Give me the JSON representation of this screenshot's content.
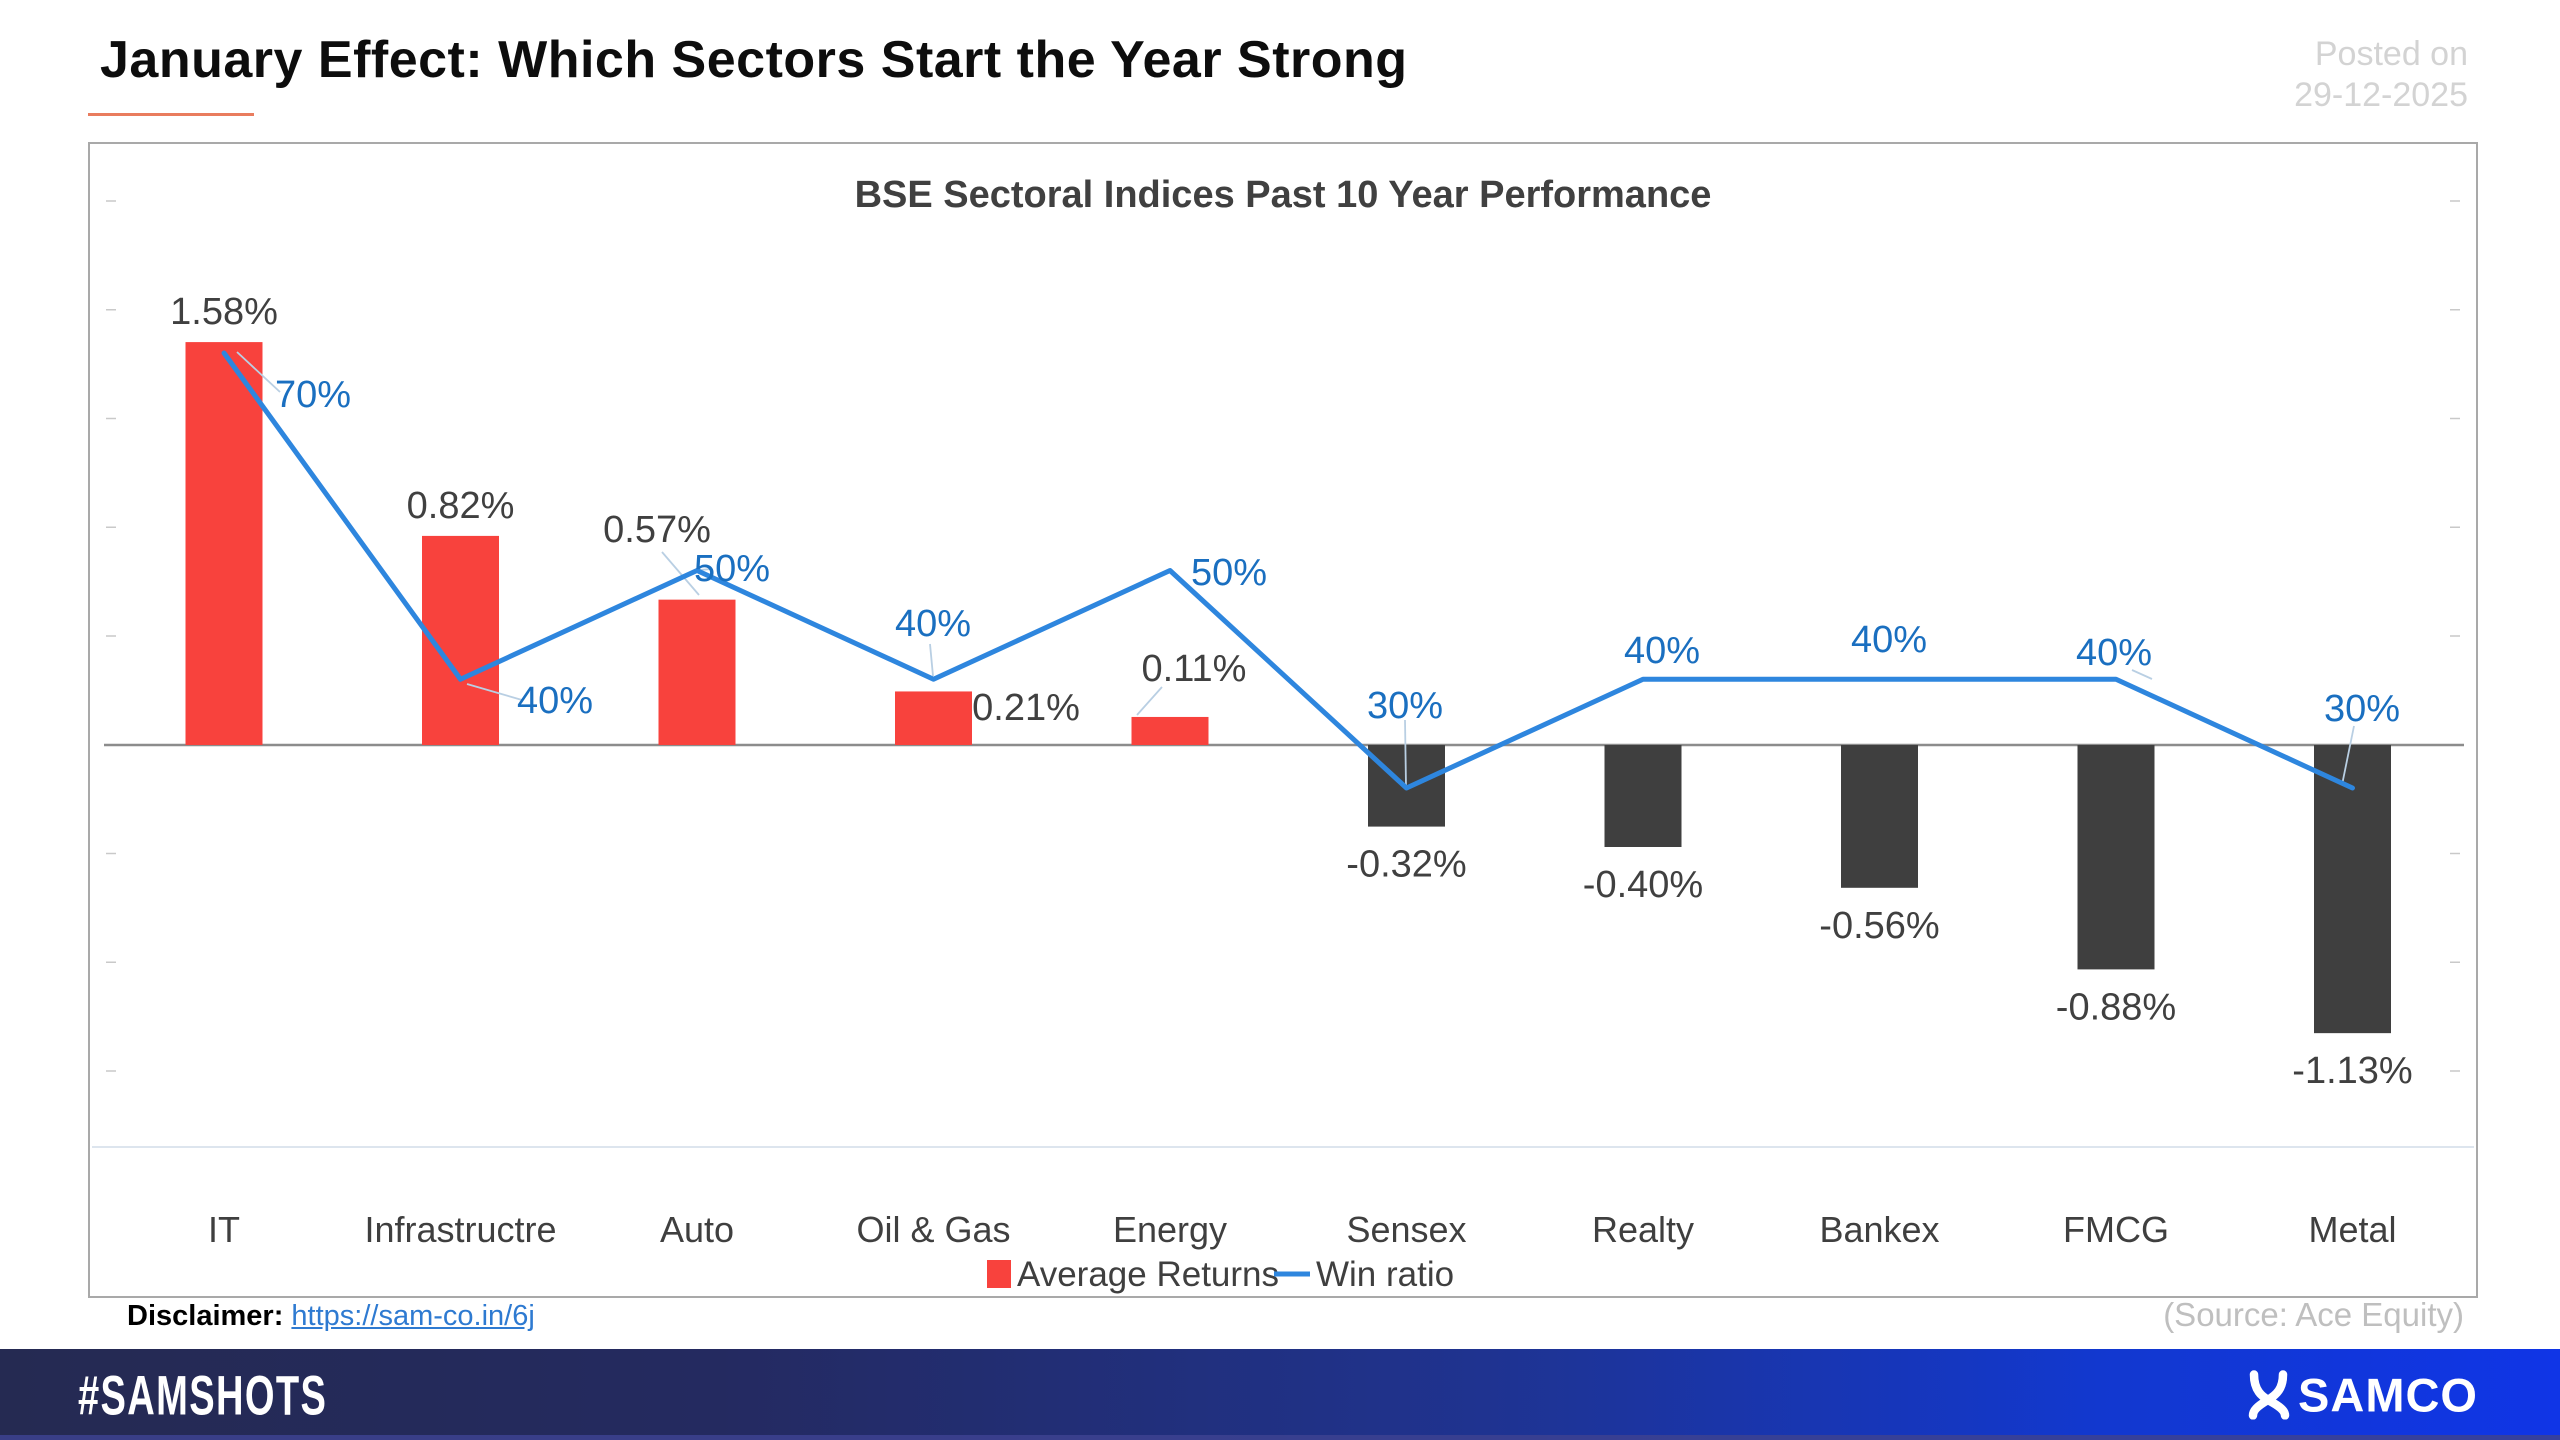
{
  "header": {
    "title": "January Effect: Which Sectors Start the Year Strong",
    "posted_on_line1": "Posted on",
    "posted_on_line2": "29-12-2025"
  },
  "chart_data": {
    "type": "bar",
    "title": "BSE Sectoral Indices Past 10 Year Performance",
    "categories": [
      "IT",
      "Infrastructre",
      "Auto",
      "Oil & Gas",
      "Energy",
      "Sensex",
      "Realty",
      "Bankex",
      "FMCG",
      "Metal"
    ],
    "series": [
      {
        "name": "Average Returns",
        "type": "bar",
        "unit": "%",
        "values": [
          1.58,
          0.82,
          0.57,
          0.21,
          0.11,
          -0.32,
          -0.4,
          -0.56,
          -0.88,
          -1.13
        ],
        "labels": [
          "1.58%",
          "0.82%",
          "0.57%",
          "0.21%",
          "0.11%",
          "-0.32%",
          "-0.40%",
          "-0.56%",
          "-0.88%",
          "-1.13%"
        ],
        "positive_color": "#f8423d",
        "negative_color": "#3f3f3f"
      },
      {
        "name": "Win ratio",
        "type": "line",
        "unit": "%",
        "values": [
          70,
          40,
          50,
          40,
          50,
          30,
          40,
          40,
          40,
          30
        ],
        "labels": [
          "70%",
          "40%",
          "50%",
          "40%",
          "50%",
          "30%",
          "40%",
          "40%",
          "40%",
          "30%"
        ],
        "color": "#2e86de",
        "label_color": "#1a6fc0"
      }
    ],
    "xlabel": "",
    "ylabel": "",
    "grid": false,
    "legend_position": "bottom",
    "legend": [
      "Average Returns",
      "Win ratio"
    ],
    "axis_note": "no visible y-axis labels; baseline at 0%"
  },
  "footer_area": {
    "disclaimer_label": "Disclaimer:",
    "disclaimer_link": "https://sam-co.in/6j",
    "source": "(Source: Ace Equity)",
    "hashtag": "#SAMSHOTS",
    "brand": "SAMCO"
  },
  "colors": {
    "bar_positive": "#f8423d",
    "bar_negative": "#3f3f3f",
    "win_line": "#2e86de",
    "win_label": "#1a6fc0",
    "value_label": "#404040",
    "title_underline": "#e97c5e",
    "link": "#2e7ad1",
    "muted_gray": "#d3d3d3",
    "footer_navy": "#252a52",
    "footer_blue": "#1035e6"
  }
}
